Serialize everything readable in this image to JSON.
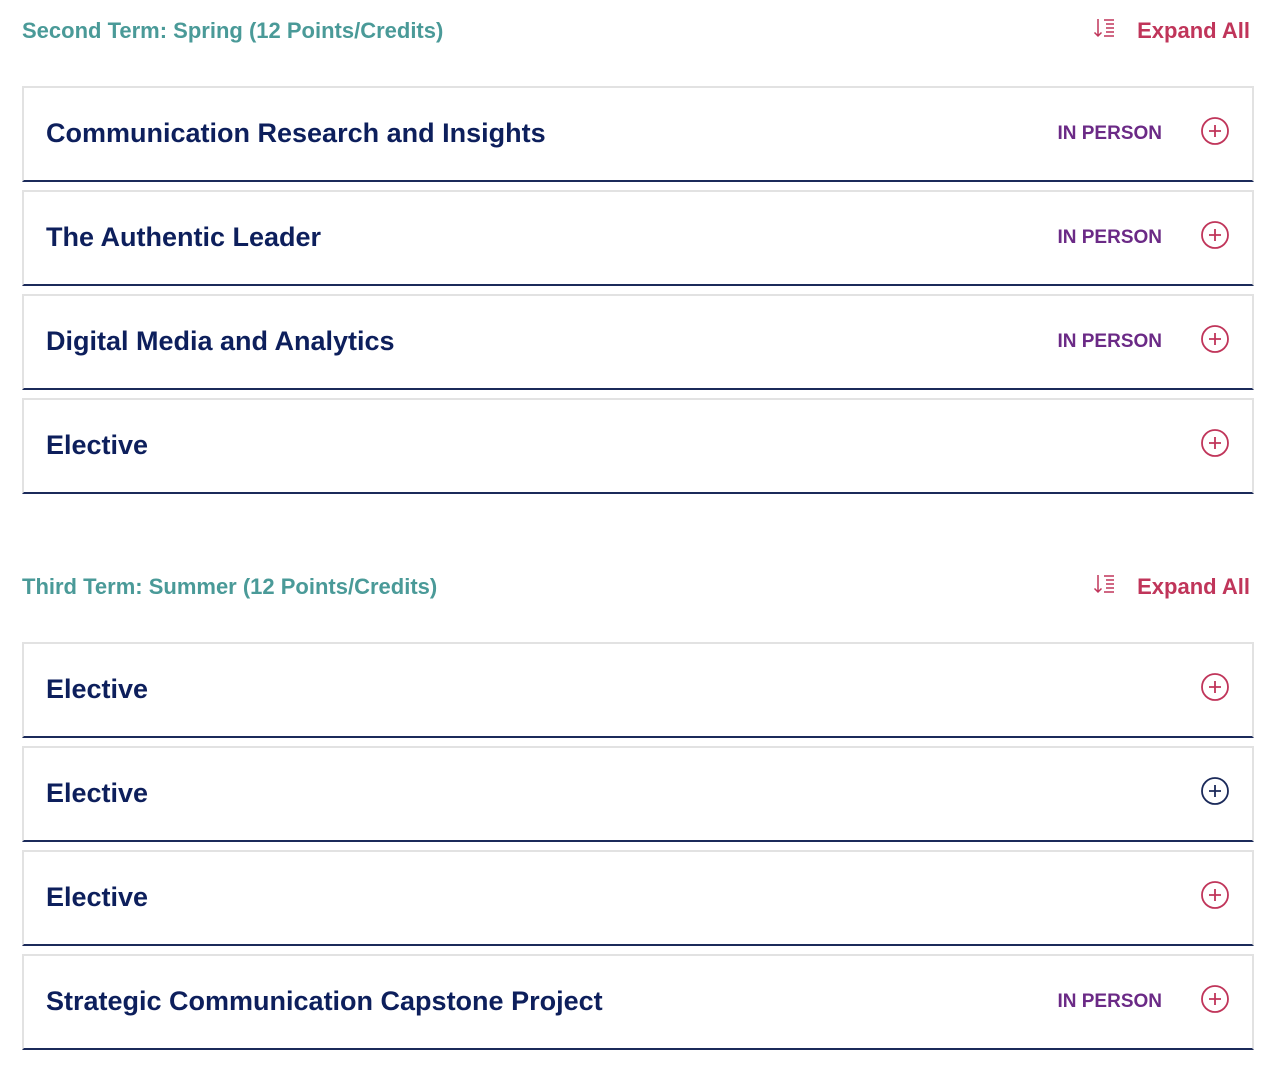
{
  "expand_all_label": "Expand All",
  "colors": {
    "term_title": "#4a9a98",
    "accent": "#c0355a",
    "course_title": "#0d1f5c",
    "badge": "#6b2a86",
    "plus_hover": "#1b2a5a"
  },
  "terms": [
    {
      "title": "Second Term: Spring (12 Points/Credits)",
      "courses": [
        {
          "title": "Communication Research and Insights",
          "badge": "IN PERSON"
        },
        {
          "title": "The Authentic Leader",
          "badge": "IN PERSON"
        },
        {
          "title": "Digital Media and Analytics",
          "badge": "IN PERSON"
        },
        {
          "title": "Elective",
          "badge": ""
        }
      ]
    },
    {
      "title": "Third Term: Summer (12 Points/Credits)",
      "courses": [
        {
          "title": "Elective",
          "badge": ""
        },
        {
          "title": "Elective",
          "badge": "",
          "hovered": true
        },
        {
          "title": "Elective",
          "badge": ""
        },
        {
          "title": "Strategic Communication Capstone Project",
          "badge": "IN PERSON"
        }
      ]
    }
  ]
}
